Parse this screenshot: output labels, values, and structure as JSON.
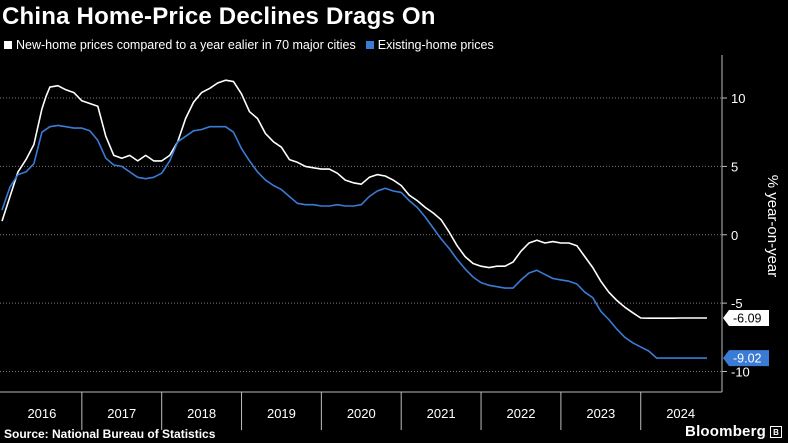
{
  "title": "China Home-Price Declines Drags On",
  "legend": [
    {
      "label": "New-home prices compared to a year ealier in 70 major cities",
      "color": "#ffffff"
    },
    {
      "label": "Existing-home prices",
      "color": "#3a7bd5"
    }
  ],
  "source": "Source: National Bureau of Statistics",
  "brand": "Bloomberg",
  "brand_badge": "B",
  "chart_data": {
    "type": "line",
    "title": "China Home-Price Declines Drags On",
    "xlabel": "",
    "ylabel": "% year-on-year",
    "ylim": [
      -11.5,
      13
    ],
    "yticks": [
      10,
      5,
      0,
      -5,
      -10
    ],
    "ytick_labels": [
      "10",
      "5",
      "0",
      "-5",
      "-10"
    ],
    "x_range": [
      2016.0,
      2024.83
    ],
    "year_labels": [
      "2016",
      "2017",
      "2018",
      "2019",
      "2020",
      "2021",
      "2022",
      "2023",
      "2024"
    ],
    "grid": true,
    "series": [
      {
        "name": "New-home prices compared to a year ealier in 70 major cities",
        "color": "#ffffff",
        "last_label": "-6.09",
        "x": [
          2016.0,
          2016.1,
          2016.2,
          2016.3,
          2016.4,
          2016.5,
          2016.55,
          2016.6,
          2016.7,
          2016.8,
          2016.9,
          2017.0,
          2017.1,
          2017.2,
          2017.3,
          2017.4,
          2017.5,
          2017.6,
          2017.7,
          2017.8,
          2017.9,
          2018.0,
          2018.1,
          2018.2,
          2018.3,
          2018.4,
          2018.5,
          2018.6,
          2018.7,
          2018.8,
          2018.9,
          2019.0,
          2019.1,
          2019.2,
          2019.3,
          2019.4,
          2019.5,
          2019.6,
          2019.7,
          2019.8,
          2019.9,
          2020.0,
          2020.1,
          2020.2,
          2020.3,
          2020.4,
          2020.5,
          2020.6,
          2020.7,
          2020.8,
          2020.9,
          2021.0,
          2021.1,
          2021.2,
          2021.3,
          2021.4,
          2021.5,
          2021.6,
          2021.7,
          2021.8,
          2021.9,
          2022.0,
          2022.1,
          2022.2,
          2022.3,
          2022.4,
          2022.5,
          2022.6,
          2022.7,
          2022.8,
          2022.9,
          2023.0,
          2023.1,
          2023.2,
          2023.3,
          2023.4,
          2023.5,
          2023.6,
          2023.7,
          2023.8,
          2023.9,
          2024.0,
          2024.1,
          2024.2,
          2024.3,
          2024.4,
          2024.5,
          2024.6,
          2024.7,
          2024.83
        ],
        "values": [
          1.0,
          2.8,
          4.6,
          5.5,
          6.6,
          9.2,
          10.1,
          10.8,
          10.9,
          10.6,
          10.4,
          9.8,
          9.6,
          9.4,
          7.2,
          5.8,
          5.6,
          5.8,
          5.4,
          5.8,
          5.4,
          5.4,
          5.8,
          6.8,
          8.5,
          9.7,
          10.4,
          10.7,
          11.1,
          11.3,
          11.2,
          10.3,
          9.0,
          8.5,
          7.4,
          6.8,
          6.4,
          5.5,
          5.3,
          5.0,
          4.9,
          4.8,
          4.8,
          4.5,
          4.0,
          3.8,
          3.7,
          4.2,
          4.4,
          4.3,
          4.0,
          3.6,
          2.9,
          2.5,
          2.0,
          1.6,
          1.1,
          0.2,
          -0.8,
          -1.6,
          -2.1,
          -2.3,
          -2.4,
          -2.3,
          -2.3,
          -2.0,
          -1.2,
          -0.6,
          -0.4,
          -0.6,
          -0.5,
          -0.6,
          -0.6,
          -0.8,
          -1.6,
          -2.4,
          -3.4,
          -4.2,
          -4.8,
          -5.3,
          -5.7,
          -6.09,
          -6.1,
          -6.1,
          -6.1,
          -6.1,
          -6.09,
          -6.09,
          -6.09,
          -6.09
        ]
      },
      {
        "name": "Existing-home prices",
        "color": "#3a7bd5",
        "last_label": "-9.02",
        "x": [
          2016.0,
          2016.1,
          2016.2,
          2016.3,
          2016.4,
          2016.5,
          2016.6,
          2016.7,
          2016.8,
          2016.9,
          2017.0,
          2017.1,
          2017.2,
          2017.3,
          2017.4,
          2017.5,
          2017.6,
          2017.7,
          2017.8,
          2017.9,
          2018.0,
          2018.1,
          2018.2,
          2018.3,
          2018.4,
          2018.5,
          2018.6,
          2018.7,
          2018.8,
          2018.9,
          2019.0,
          2019.1,
          2019.2,
          2019.3,
          2019.4,
          2019.5,
          2019.6,
          2019.7,
          2019.8,
          2019.9,
          2020.0,
          2020.1,
          2020.2,
          2020.3,
          2020.4,
          2020.5,
          2020.6,
          2020.7,
          2020.8,
          2020.9,
          2021.0,
          2021.1,
          2021.2,
          2021.3,
          2021.4,
          2021.5,
          2021.6,
          2021.7,
          2021.8,
          2021.9,
          2022.0,
          2022.1,
          2022.2,
          2022.3,
          2022.4,
          2022.5,
          2022.6,
          2022.7,
          2022.8,
          2022.9,
          2023.0,
          2023.1,
          2023.2,
          2023.3,
          2023.4,
          2023.5,
          2023.6,
          2023.7,
          2023.8,
          2023.9,
          2024.0,
          2024.1,
          2024.2,
          2024.3,
          2024.4,
          2024.5,
          2024.6,
          2024.7,
          2024.83
        ],
        "values": [
          1.8,
          3.5,
          4.4,
          4.6,
          5.2,
          7.5,
          7.9,
          8.0,
          7.9,
          7.8,
          7.8,
          7.6,
          6.9,
          5.6,
          5.1,
          5.0,
          4.6,
          4.2,
          4.1,
          4.2,
          4.5,
          5.4,
          6.8,
          7.2,
          7.6,
          7.7,
          7.9,
          7.9,
          7.9,
          7.5,
          6.3,
          5.4,
          4.6,
          4.0,
          3.6,
          3.3,
          2.8,
          2.3,
          2.2,
          2.2,
          2.1,
          2.1,
          2.2,
          2.1,
          2.1,
          2.2,
          2.8,
          3.2,
          3.4,
          3.2,
          3.1,
          2.5,
          2.0,
          1.3,
          0.5,
          -0.3,
          -1.0,
          -1.8,
          -2.5,
          -3.1,
          -3.5,
          -3.7,
          -3.8,
          -3.9,
          -3.9,
          -3.3,
          -2.8,
          -2.6,
          -2.9,
          -3.2,
          -3.3,
          -3.4,
          -3.6,
          -4.2,
          -4.6,
          -5.6,
          -6.2,
          -6.9,
          -7.5,
          -7.9,
          -8.2,
          -8.5,
          -9.02,
          -9.02,
          -9.02,
          -9.02,
          -9.02,
          -9.02,
          -9.02
        ]
      }
    ]
  }
}
